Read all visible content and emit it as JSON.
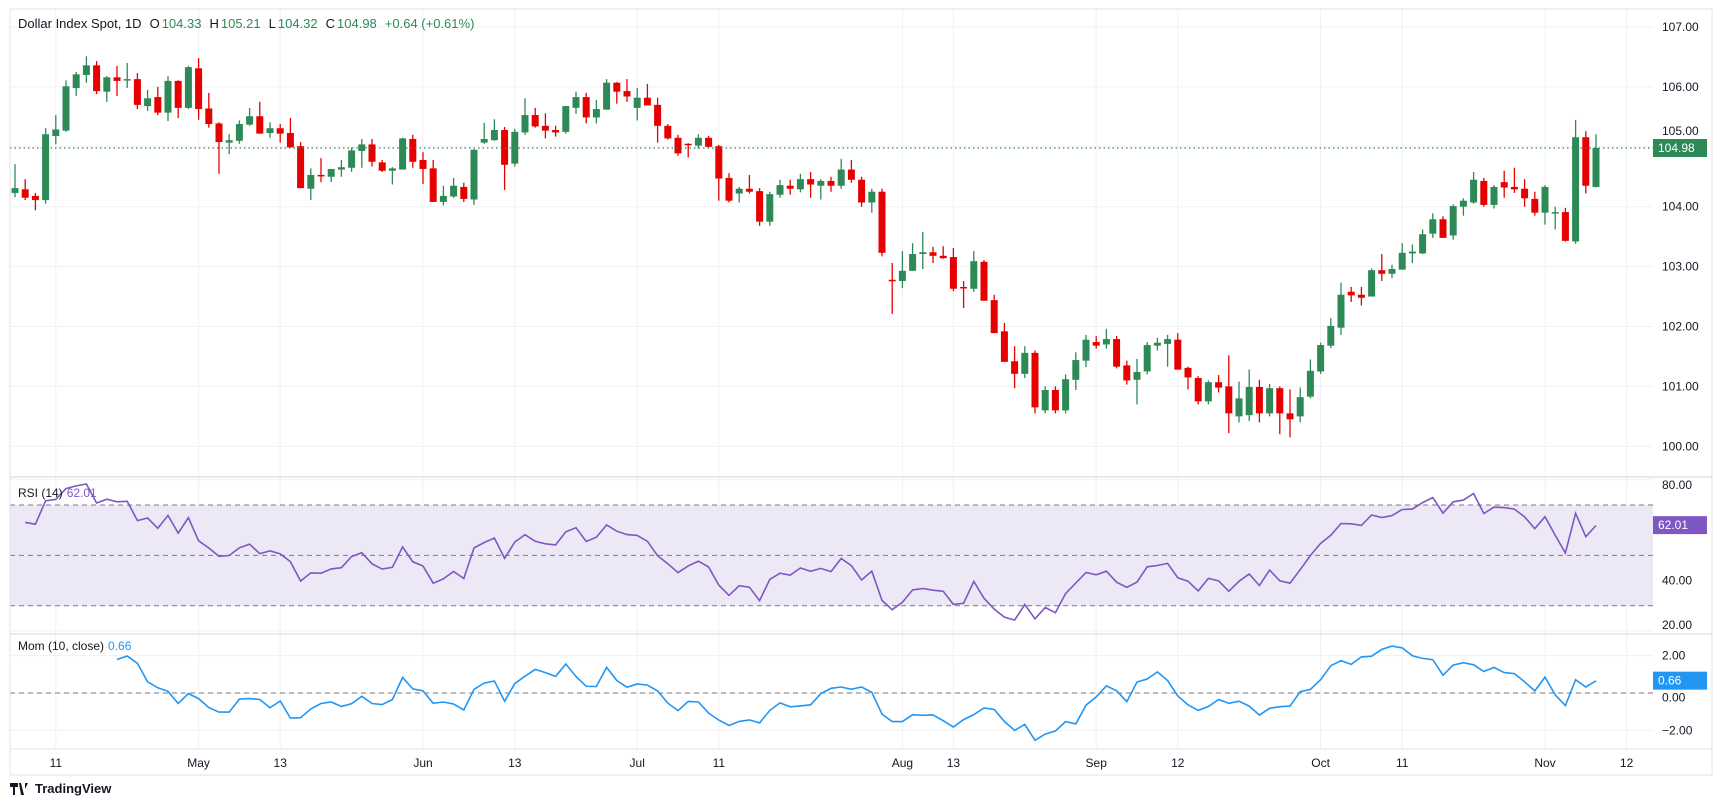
{
  "header": {
    "symbol": "Dollar Index Spot, 1D",
    "o_label": "O",
    "o": "104.33",
    "h_label": "H",
    "h": "105.21",
    "l_label": "L",
    "l": "104.32",
    "c_label": "C",
    "c": "104.98",
    "change": "+0.64 (+0.61%)"
  },
  "rsi": {
    "label": "RSI (14)",
    "value": "62.01"
  },
  "mom": {
    "label": "Mom (10, close)",
    "value": "0.66"
  },
  "branding": "TradingView",
  "colors": {
    "up": "#2d8a57",
    "down": "#e60000",
    "rsi": "#7e57c2",
    "rsi_band": "#ede8f6",
    "mom": "#2196f3",
    "grid": "#f0f1f3",
    "text": "#131722"
  },
  "chart_data": {
    "type": "candlestick",
    "ohlc_fields": [
      "open",
      "high",
      "low",
      "close"
    ],
    "ohlc": [
      [
        104.23,
        104.71,
        104.16,
        104.31
      ],
      [
        104.29,
        104.46,
        104.11,
        104.15
      ],
      [
        104.18,
        104.23,
        103.94,
        104.11
      ],
      [
        104.11,
        105.31,
        104.05,
        105.21
      ],
      [
        105.18,
        105.53,
        105.04,
        105.29
      ],
      [
        105.27,
        106.11,
        105.25,
        106.01
      ],
      [
        105.98,
        106.25,
        105.85,
        106.21
      ],
      [
        106.2,
        106.51,
        106.07,
        106.36
      ],
      [
        106.36,
        106.43,
        105.88,
        105.93
      ],
      [
        105.92,
        106.18,
        105.75,
        106.16
      ],
      [
        106.16,
        106.35,
        105.85,
        106.1
      ],
      [
        106.12,
        106.4,
        105.98,
        106.13
      ],
      [
        106.13,
        106.23,
        105.63,
        105.7
      ],
      [
        105.68,
        105.95,
        105.6,
        105.81
      ],
      [
        105.83,
        106.0,
        105.53,
        105.57
      ],
      [
        105.57,
        106.18,
        105.43,
        106.1
      ],
      [
        106.1,
        106.11,
        105.48,
        105.65
      ],
      [
        105.65,
        106.35,
        105.63,
        106.33
      ],
      [
        106.31,
        106.48,
        105.45,
        105.63
      ],
      [
        105.64,
        105.9,
        105.32,
        105.38
      ],
      [
        105.39,
        105.41,
        104.55,
        105.08
      ],
      [
        105.07,
        105.21,
        104.88,
        105.11
      ],
      [
        105.1,
        105.44,
        105.05,
        105.38
      ],
      [
        105.37,
        105.65,
        105.35,
        105.51
      ],
      [
        105.51,
        105.75,
        105.22,
        105.22
      ],
      [
        105.23,
        105.41,
        105.15,
        105.31
      ],
      [
        105.31,
        105.38,
        105.07,
        105.22
      ],
      [
        105.23,
        105.48,
        104.99,
        104.99
      ],
      [
        105.01,
        105.08,
        104.31,
        104.31
      ],
      [
        104.3,
        104.64,
        104.11,
        104.53
      ],
      [
        104.53,
        104.81,
        104.41,
        104.52
      ],
      [
        104.5,
        104.63,
        104.41,
        104.63
      ],
      [
        104.62,
        104.78,
        104.5,
        104.66
      ],
      [
        104.65,
        104.99,
        104.58,
        104.94
      ],
      [
        104.93,
        105.13,
        104.65,
        105.04
      ],
      [
        105.04,
        105.13,
        104.67,
        104.75
      ],
      [
        104.74,
        104.78,
        104.58,
        104.6
      ],
      [
        104.6,
        104.66,
        104.37,
        104.64
      ],
      [
        104.62,
        105.15,
        104.62,
        105.14
      ],
      [
        105.13,
        105.2,
        104.65,
        104.75
      ],
      [
        104.78,
        104.91,
        104.38,
        104.63
      ],
      [
        104.64,
        104.78,
        104.08,
        104.08
      ],
      [
        104.08,
        104.35,
        104.02,
        104.18
      ],
      [
        104.17,
        104.48,
        104.15,
        104.35
      ],
      [
        104.33,
        104.4,
        104.08,
        104.13
      ],
      [
        104.12,
        104.96,
        104.03,
        104.95
      ],
      [
        105.07,
        105.4,
        105.05,
        105.13
      ],
      [
        105.11,
        105.46,
        105.1,
        105.28
      ],
      [
        105.28,
        105.33,
        104.28,
        104.7
      ],
      [
        104.72,
        105.3,
        104.67,
        105.25
      ],
      [
        105.24,
        105.81,
        105.2,
        105.53
      ],
      [
        105.53,
        105.65,
        105.32,
        105.34
      ],
      [
        105.35,
        105.56,
        105.14,
        105.27
      ],
      [
        105.28,
        105.35,
        105.17,
        105.24
      ],
      [
        105.25,
        105.68,
        105.22,
        105.68
      ],
      [
        105.65,
        105.92,
        105.55,
        105.83
      ],
      [
        105.83,
        105.9,
        105.39,
        105.49
      ],
      [
        105.49,
        105.78,
        105.39,
        105.63
      ],
      [
        105.62,
        106.13,
        105.62,
        106.07
      ],
      [
        106.07,
        106.08,
        105.72,
        105.92
      ],
      [
        105.93,
        106.13,
        105.75,
        105.84
      ],
      [
        105.65,
        105.98,
        105.44,
        105.82
      ],
      [
        105.82,
        106.05,
        105.69,
        105.69
      ],
      [
        105.7,
        105.82,
        105.07,
        105.35
      ],
      [
        105.35,
        105.38,
        105.12,
        105.14
      ],
      [
        105.15,
        105.2,
        104.85,
        104.89
      ],
      [
        105.05,
        105.06,
        104.82,
        105.04
      ],
      [
        105.02,
        105.21,
        104.97,
        105.15
      ],
      [
        105.15,
        105.18,
        104.99,
        105.0
      ],
      [
        105.01,
        105.03,
        104.1,
        104.47
      ],
      [
        104.48,
        104.56,
        104.07,
        104.1
      ],
      [
        104.22,
        104.33,
        104.07,
        104.3
      ],
      [
        104.3,
        104.53,
        104.22,
        104.25
      ],
      [
        104.26,
        104.31,
        103.68,
        103.75
      ],
      [
        103.75,
        104.25,
        103.68,
        104.21
      ],
      [
        104.2,
        104.45,
        104.15,
        104.36
      ],
      [
        104.35,
        104.45,
        104.2,
        104.3
      ],
      [
        104.29,
        104.55,
        104.24,
        104.46
      ],
      [
        104.46,
        104.58,
        104.15,
        104.37
      ],
      [
        104.35,
        104.46,
        104.12,
        104.43
      ],
      [
        104.43,
        104.5,
        104.25,
        104.35
      ],
      [
        104.35,
        104.8,
        104.3,
        104.62
      ],
      [
        104.62,
        104.78,
        104.4,
        104.45
      ],
      [
        104.45,
        104.5,
        104.0,
        104.07
      ],
      [
        104.07,
        104.3,
        103.9,
        104.25
      ],
      [
        104.25,
        104.3,
        103.17,
        103.23
      ],
      [
        102.78,
        103.06,
        102.21,
        102.77
      ],
      [
        102.76,
        103.26,
        102.64,
        102.93
      ],
      [
        102.93,
        103.39,
        102.93,
        103.21
      ],
      [
        103.21,
        103.58,
        102.96,
        103.24
      ],
      [
        103.24,
        103.33,
        103.06,
        103.18
      ],
      [
        103.18,
        103.34,
        103.13,
        103.14
      ],
      [
        103.16,
        103.31,
        102.59,
        102.63
      ],
      [
        102.66,
        102.76,
        102.31,
        102.65
      ],
      [
        102.63,
        103.26,
        102.58,
        103.09
      ],
      [
        103.08,
        103.11,
        102.43,
        102.43
      ],
      [
        102.44,
        102.53,
        101.89,
        101.89
      ],
      [
        101.92,
        102.06,
        101.41,
        101.41
      ],
      [
        101.42,
        101.67,
        100.97,
        101.21
      ],
      [
        101.21,
        101.67,
        101.14,
        101.56
      ],
      [
        101.56,
        101.6,
        100.55,
        100.65
      ],
      [
        100.6,
        101.0,
        100.55,
        100.94
      ],
      [
        100.94,
        101.0,
        100.55,
        100.6
      ],
      [
        100.6,
        101.2,
        100.55,
        101.12
      ],
      [
        101.11,
        101.57,
        100.94,
        101.44
      ],
      [
        101.43,
        101.86,
        101.32,
        101.78
      ],
      [
        101.74,
        101.84,
        101.63,
        101.68
      ],
      [
        101.7,
        101.96,
        101.63,
        101.79
      ],
      [
        101.79,
        101.84,
        101.3,
        101.33
      ],
      [
        101.35,
        101.43,
        101.03,
        101.1
      ],
      [
        101.11,
        101.46,
        100.7,
        101.24
      ],
      [
        101.25,
        101.74,
        101.2,
        101.69
      ],
      [
        101.68,
        101.81,
        101.6,
        101.73
      ],
      [
        101.71,
        101.86,
        101.33,
        101.79
      ],
      [
        101.78,
        101.89,
        101.28,
        101.28
      ],
      [
        101.31,
        101.33,
        100.95,
        101.15
      ],
      [
        101.14,
        101.17,
        100.7,
        100.75
      ],
      [
        100.75,
        101.1,
        100.7,
        101.07
      ],
      [
        101.07,
        101.19,
        100.9,
        100.98
      ],
      [
        101.0,
        101.52,
        100.22,
        100.55
      ],
      [
        100.5,
        101.08,
        100.4,
        100.8
      ],
      [
        100.52,
        101.28,
        100.42,
        100.99
      ],
      [
        100.99,
        101.11,
        100.4,
        100.55
      ],
      [
        100.55,
        101.04,
        100.5,
        100.97
      ],
      [
        100.97,
        101.0,
        100.2,
        100.55
      ],
      [
        100.55,
        100.95,
        100.15,
        100.45
      ],
      [
        100.5,
        100.98,
        100.4,
        100.82
      ],
      [
        100.83,
        101.45,
        100.8,
        101.26
      ],
      [
        101.25,
        101.73,
        101.21,
        101.69
      ],
      [
        101.68,
        102.14,
        101.64,
        102.01
      ],
      [
        101.98,
        102.73,
        101.86,
        102.53
      ],
      [
        102.58,
        102.66,
        102.41,
        102.52
      ],
      [
        102.53,
        102.66,
        102.35,
        102.48
      ],
      [
        102.5,
        102.97,
        102.5,
        102.94
      ],
      [
        102.94,
        103.21,
        102.76,
        102.88
      ],
      [
        102.88,
        103.03,
        102.81,
        102.96
      ],
      [
        102.95,
        103.39,
        102.95,
        103.23
      ],
      [
        103.22,
        103.37,
        103.06,
        103.25
      ],
      [
        103.22,
        103.62,
        103.21,
        103.54
      ],
      [
        103.55,
        103.89,
        103.48,
        103.79
      ],
      [
        103.79,
        103.84,
        103.48,
        103.48
      ],
      [
        103.52,
        104.04,
        103.45,
        104.01
      ],
      [
        104.0,
        104.14,
        103.85,
        104.1
      ],
      [
        104.07,
        104.58,
        104.05,
        104.45
      ],
      [
        104.43,
        104.48,
        104.0,
        104.03
      ],
      [
        104.03,
        104.36,
        103.97,
        104.33
      ],
      [
        104.41,
        104.6,
        104.15,
        104.32
      ],
      [
        104.33,
        104.65,
        104.23,
        104.29
      ],
      [
        104.3,
        104.46,
        104.0,
        104.14
      ],
      [
        104.13,
        104.25,
        103.85,
        103.9
      ],
      [
        103.9,
        104.36,
        103.7,
        104.33
      ],
      [
        103.9,
        104.0,
        103.62,
        103.91
      ],
      [
        103.91,
        103.98,
        103.42,
        103.43
      ],
      [
        103.42,
        105.45,
        103.38,
        105.16
      ],
      [
        105.16,
        105.26,
        104.22,
        104.35
      ],
      [
        104.33,
        105.21,
        104.32,
        104.98
      ]
    ],
    "last_price": "104.98",
    "price_axis": {
      "ticks": [
        "107.00",
        "106.00",
        "105.00",
        "104.00",
        "103.00",
        "102.00",
        "101.00",
        "100.00"
      ],
      "ylim": [
        99.6,
        107.0
      ]
    },
    "x_ticks": [
      {
        "label": "11",
        "index": 4
      },
      {
        "label": "May",
        "index": 18
      },
      {
        "label": "13",
        "index": 26
      },
      {
        "label": "Jun",
        "index": 40
      },
      {
        "label": "13",
        "index": 49
      },
      {
        "label": "Jul",
        "index": 61
      },
      {
        "label": "11",
        "index": 69
      },
      {
        "label": "Aug",
        "index": 87
      },
      {
        "label": "13",
        "index": 92
      },
      {
        "label": "Sep",
        "index": 106
      },
      {
        "label": "12",
        "index": 114
      },
      {
        "label": "Oct",
        "index": 128
      },
      {
        "label": "11",
        "index": 136
      },
      {
        "label": "Nov",
        "index": 150
      },
      {
        "label": "12",
        "index": 158
      }
    ],
    "rsi_pane": {
      "period": 14,
      "ticks": [
        "80.00",
        "40.00",
        "20.00"
      ],
      "tick_values": [
        80,
        40,
        20
      ],
      "bands": [
        70,
        50,
        30
      ],
      "ylim": [
        19,
        80
      ]
    },
    "mom_pane": {
      "period": 10,
      "ticks": [
        "2.00",
        "0.00",
        "−2.00"
      ],
      "tick_values": [
        2,
        0,
        -2
      ],
      "zero": 0,
      "ylim": [
        -3,
        2.9
      ]
    },
    "grid": true
  }
}
